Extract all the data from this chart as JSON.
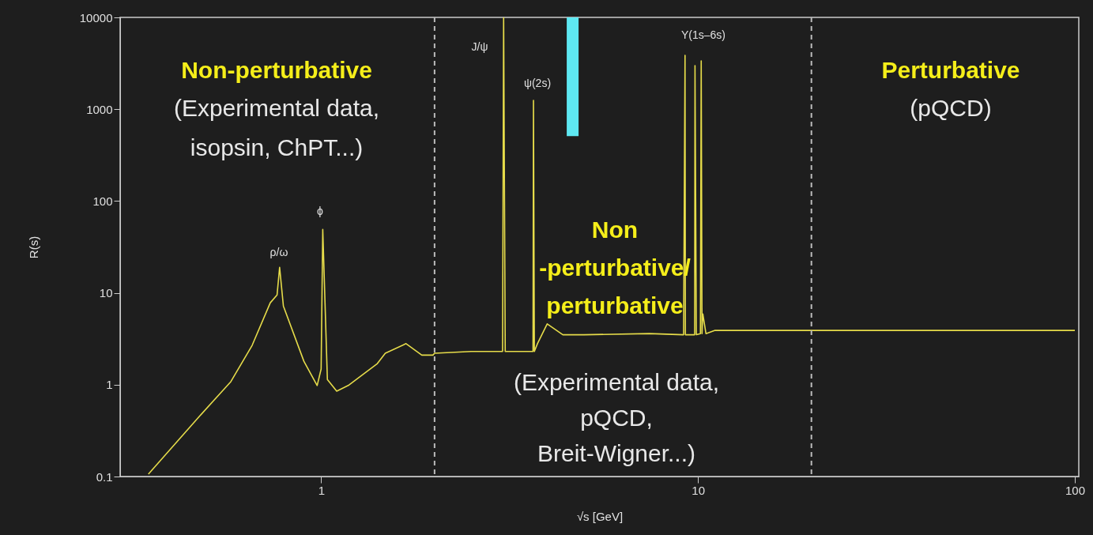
{
  "chart_data": {
    "type": "line",
    "xlabel": "√s [GeV]",
    "ylabel": "R(s)",
    "xlim": [
      0.3,
      100
    ],
    "xticks": [
      1,
      10,
      100
    ],
    "ylim": [
      0.1,
      10000
    ],
    "yticks": [
      0.1,
      1,
      10,
      100,
      1000,
      10000
    ],
    "log": "xy",
    "grid": false,
    "line_style": "solid",
    "series": [
      {
        "type": "bar",
        "color": "#5ee8f2",
        "x": [
          4.65
        ],
        "base": [
          510
        ],
        "values": [
          9490
        ]
      },
      {
        "color": "#e6dc4a",
        "x": [
          0.348,
          0.475,
          0.576,
          0.656,
          0.733,
          0.764,
          0.776,
          0.794,
          0.9,
          0.976,
          1.0,
          1.01,
          1.039,
          1.1,
          1.18,
          1.41,
          1.48,
          1.68,
          1.85,
          1.98,
          2.0,
          2.5,
          3.03,
          3.05,
          3.08,
          3.65,
          3.66,
          3.68,
          3.75,
          3.98,
          4.38,
          4.98,
          7.43,
          9.16,
          9.24,
          9.26,
          9.4,
          9.8,
          9.82,
          9.9,
          10.15,
          10.2,
          10.25,
          10.3,
          10.5,
          11.1,
          100
        ],
        "values": [
          0.106,
          0.451,
          1.08,
          2.68,
          7.8,
          9.5,
          19,
          7.2,
          1.8,
          0.98,
          1.48,
          49,
          1.14,
          0.85,
          0.98,
          1.7,
          2.2,
          2.8,
          2.1,
          2.1,
          2.2,
          2.3,
          2.3,
          10000,
          2.3,
          2.3,
          1250,
          2.3,
          2.8,
          4.6,
          3.5,
          3.5,
          3.6,
          3.5,
          3860,
          3.5,
          3.5,
          3.5,
          2990,
          3.5,
          3.6,
          3360,
          3.6,
          5.9,
          3.6,
          3.9,
          3.9
        ]
      }
    ],
    "ref_lines": [
      {
        "axis": "x",
        "value": 2,
        "color": "#bbbbbb",
        "line_style": "dashed"
      },
      {
        "axis": "x",
        "value": 20,
        "color": "#bbbbbb",
        "line_style": "dashed"
      }
    ],
    "annotations": [
      "ρ/ω",
      "ϕ",
      "J/ψ",
      "ψ(2s)",
      "Υ(1s–6s)",
      "Non-perturbative",
      "(Experimental data,",
      "isopsin, ChPT...)",
      "Non",
      "-perturbative/",
      "perturbative",
      "(Experimental data,",
      "pQCD,",
      "Breit-Wigner...)",
      "Perturbative",
      "(pQCD)"
    ]
  }
}
